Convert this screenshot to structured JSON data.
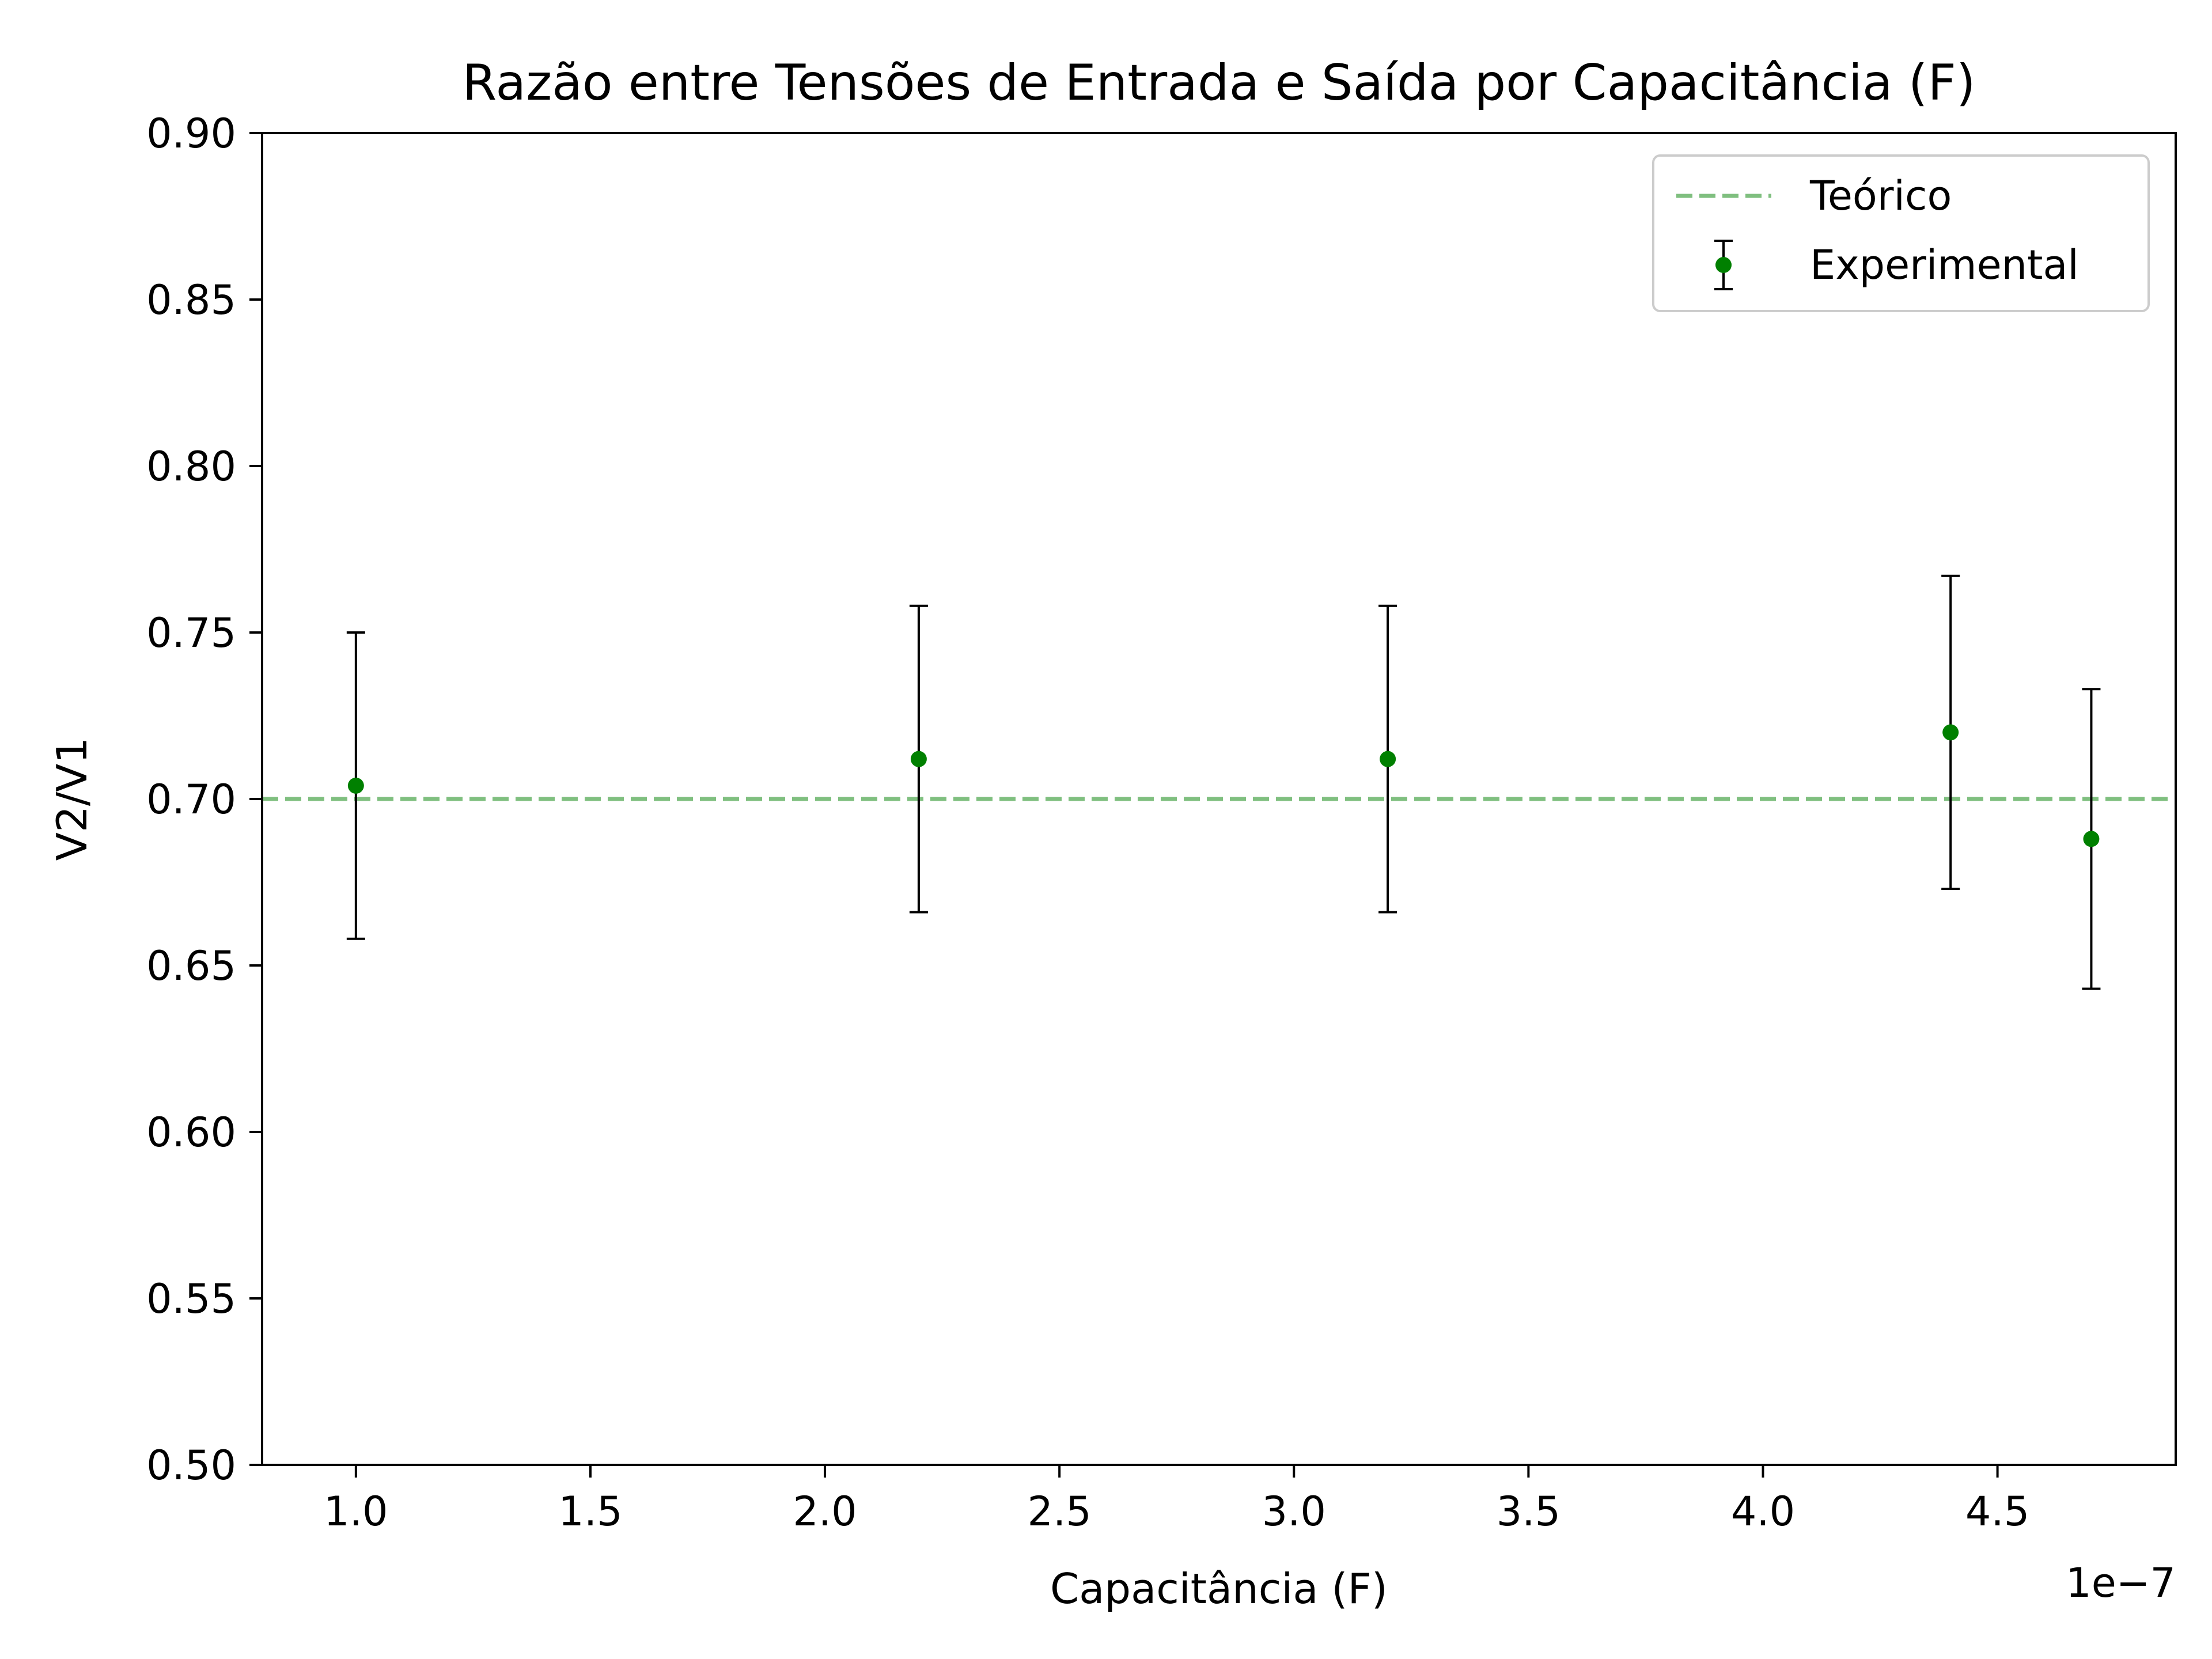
{
  "chart_data": {
    "type": "scatter",
    "title": "Razão entre Tensões de Entrada e Saída por Capacitância (F)",
    "xlabel": "Capacitância (F)",
    "ylabel": "V2/V1",
    "x_offset_label": "1e−7",
    "x_scale_factor": 1e-07,
    "xlim": [
      0.8,
      4.88
    ],
    "ylim": [
      0.5,
      0.9
    ],
    "x_ticks": [
      1.0,
      1.5,
      2.0,
      2.5,
      3.0,
      3.5,
      4.0,
      4.5
    ],
    "x_tick_labels": [
      "1.0",
      "1.5",
      "2.0",
      "2.5",
      "3.0",
      "3.5",
      "4.0",
      "4.5"
    ],
    "y_ticks": [
      0.5,
      0.55,
      0.6,
      0.65,
      0.7,
      0.75,
      0.8,
      0.85,
      0.9
    ],
    "y_tick_labels": [
      "0.50",
      "0.55",
      "0.60",
      "0.65",
      "0.70",
      "0.75",
      "0.80",
      "0.85",
      "0.90"
    ],
    "grid": false,
    "legend_position": "top-right",
    "series": [
      {
        "name": "Teórico",
        "kind": "hline",
        "y": 0.7,
        "color": "#7fbf7f",
        "style": "dashed"
      },
      {
        "name": "Experimental",
        "kind": "errorbar",
        "color": "#008000",
        "error_color": "#000000",
        "x": [
          1.0,
          2.2,
          3.2,
          4.4,
          4.7
        ],
        "y": [
          0.704,
          0.712,
          0.712,
          0.72,
          0.688
        ],
        "yerr": [
          0.046,
          0.046,
          0.046,
          0.047,
          0.045
        ]
      }
    ]
  }
}
